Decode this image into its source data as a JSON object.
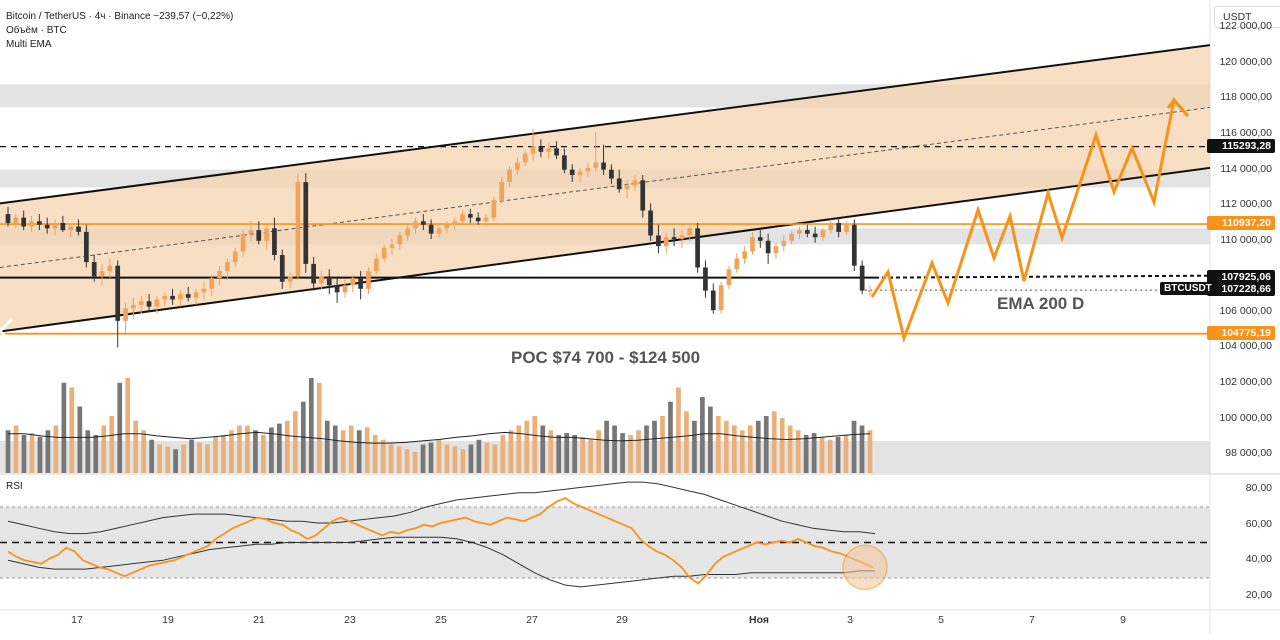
{
  "header": {
    "symbol_line": "Bitcoin / TetherUS · 4ч · Binance  −239,57 (−0,22%)",
    "volume_line": "Объём · BTC",
    "ema_line": "Multi EMA"
  },
  "price_axis": {
    "currency": "USDT",
    "ticks": [
      "122 000,00",
      "120 000,00",
      "118 000,00",
      "116 000,00",
      "114 000,00",
      "112 000,00",
      "110 000,00",
      "108 000,00",
      "106 000,00",
      "104 000,00",
      "102 000,00",
      "100 000,00",
      "98 000,00"
    ]
  },
  "rsi_axis": {
    "label": "RSI",
    "ticks": [
      "80,00",
      "60,00",
      "40,00",
      "20,00"
    ]
  },
  "time_axis": {
    "ticks": [
      "17",
      "19",
      "21",
      "23",
      "25",
      "27",
      "29",
      "Ноя",
      "3",
      "5",
      "7",
      "9"
    ]
  },
  "price_labels": [
    {
      "text": "115293,28",
      "color": "#111111"
    },
    {
      "text": "110937,20",
      "color": "#f7931a"
    },
    {
      "text": "107925,06",
      "color": "#111111"
    },
    {
      "text": "107228,66",
      "color": "#111111"
    },
    {
      "text": "104775,19",
      "color": "#f7931a"
    }
  ],
  "ticker_label": "BTCUSDT",
  "annotations": {
    "ema": "EMA 200 D",
    "poc": "POC $74 700 - $124 500"
  },
  "colors": {
    "up": "#f0a35a",
    "down": "#333333",
    "orange": "#f7931a",
    "channel_fill": "#f6d3ad",
    "zone_grey": "#d9d9d9",
    "rsi": "#f7931a"
  },
  "chart_data": {
    "type": "candlestick",
    "title": "Bitcoin / TetherUS · 4ч · Binance",
    "ylim": [
      97000,
      123200
    ],
    "levels": {
      "resistance_dashed": 115293.28,
      "orange_level": 110937.2,
      "ema200d": 107925.06,
      "last_price": 107228.66,
      "poc_support": 104775.19
    },
    "grey_zones": [
      [
        117500,
        118800
      ],
      [
        113000,
        114000
      ],
      [
        109800,
        110700
      ]
    ],
    "channel": {
      "upper": {
        "from": [
          0,
          112100
        ],
        "to": [
          1210,
          121000
        ]
      },
      "lower": {
        "from": [
          0,
          104900
        ],
        "to": [
          1210,
          114100
        ]
      },
      "mid": {
        "from": [
          0,
          108500
        ],
        "to": [
          1210,
          117500
        ]
      }
    },
    "candles": [
      [
        111500,
        111900,
        110800,
        111000
      ],
      [
        111000,
        111500,
        110700,
        111300
      ],
      [
        111300,
        111700,
        110600,
        110800
      ],
      [
        110800,
        111400,
        110500,
        111100
      ],
      [
        111100,
        111500,
        110600,
        110900
      ],
      [
        110900,
        111300,
        110400,
        110700
      ],
      [
        110700,
        111200,
        110300,
        111000
      ],
      [
        111000,
        111400,
        110500,
        110600
      ],
      [
        110600,
        111000,
        110200,
        110800
      ],
      [
        110800,
        111200,
        110300,
        110500
      ],
      [
        110500,
        110900,
        108500,
        108800
      ],
      [
        108800,
        109200,
        107700,
        108000
      ],
      [
        108000,
        108700,
        107500,
        108300
      ],
      [
        108300,
        109000,
        107900,
        108600
      ],
      [
        108600,
        108900,
        104000,
        105500
      ],
      [
        105500,
        106500,
        104800,
        106200
      ],
      [
        106200,
        106800,
        105600,
        106400
      ],
      [
        106400,
        106900,
        105900,
        106600
      ],
      [
        106600,
        107000,
        106000,
        106300
      ],
      [
        106300,
        106900,
        105900,
        106700
      ],
      [
        106700,
        107100,
        106300,
        106900
      ],
      [
        106900,
        107300,
        106400,
        106700
      ],
      [
        106700,
        107200,
        106300,
        107000
      ],
      [
        107000,
        107400,
        106600,
        106800
      ],
      [
        106800,
        107300,
        106400,
        107100
      ],
      [
        107100,
        107700,
        106700,
        107300
      ],
      [
        107300,
        108100,
        106900,
        107900
      ],
      [
        107900,
        108600,
        107500,
        108300
      ],
      [
        108300,
        109000,
        107800,
        108800
      ],
      [
        108800,
        109600,
        108500,
        109400
      ],
      [
        109400,
        110600,
        109100,
        110400
      ],
      [
        110400,
        111100,
        110000,
        110600
      ],
      [
        110600,
        111100,
        109800,
        110000
      ],
      [
        110000,
        110900,
        109500,
        110700
      ],
      [
        110700,
        111300,
        108900,
        109200
      ],
      [
        109200,
        109500,
        107300,
        107700
      ],
      [
        107700,
        108200,
        107300,
        108000
      ],
      [
        108000,
        113800,
        107800,
        113300
      ],
      [
        113300,
        113800,
        108200,
        108700
      ],
      [
        108700,
        109100,
        107200,
        107600
      ],
      [
        107600,
        108300,
        107300,
        108000
      ],
      [
        108000,
        108400,
        107000,
        107500
      ],
      [
        107500,
        108000,
        106500,
        107100
      ],
      [
        107100,
        107800,
        106800,
        107500
      ],
      [
        107500,
        108100,
        107100,
        107900
      ],
      [
        107900,
        108300,
        106700,
        107300
      ],
      [
        107300,
        108500,
        107000,
        108300
      ],
      [
        108300,
        109300,
        108100,
        109000
      ],
      [
        109000,
        109800,
        108800,
        109600
      ],
      [
        109600,
        110100,
        109200,
        109800
      ],
      [
        109800,
        110500,
        109500,
        110300
      ],
      [
        110300,
        110900,
        110000,
        110700
      ],
      [
        110700,
        111300,
        110400,
        111100
      ],
      [
        111100,
        111500,
        110600,
        110900
      ],
      [
        110900,
        111200,
        110100,
        110400
      ],
      [
        110400,
        110900,
        110200,
        110700
      ],
      [
        110700,
        111100,
        110400,
        110900
      ],
      [
        110900,
        111300,
        110600,
        111100
      ],
      [
        111100,
        111700,
        110900,
        111500
      ],
      [
        111500,
        111800,
        111000,
        111300
      ],
      [
        111300,
        111600,
        110900,
        111100
      ],
      [
        111100,
        111500,
        110800,
        111300
      ],
      [
        111300,
        112500,
        111100,
        112300
      ],
      [
        112300,
        113600,
        112100,
        113300
      ],
      [
        113300,
        114200,
        113000,
        114000
      ],
      [
        114000,
        114700,
        113700,
        114400
      ],
      [
        114400,
        115100,
        114200,
        114900
      ],
      [
        114900,
        116300,
        114500,
        115300
      ],
      [
        115300,
        115700,
        114700,
        115000
      ],
      [
        115000,
        115500,
        114600,
        115200
      ],
      [
        115200,
        115600,
        114600,
        114800
      ],
      [
        114800,
        115200,
        113800,
        114000
      ],
      [
        114000,
        114300,
        113300,
        113700
      ],
      [
        113700,
        114100,
        113300,
        113900
      ],
      [
        113900,
        114400,
        113600,
        114100
      ],
      [
        114100,
        116100,
        113900,
        114400
      ],
      [
        114400,
        115400,
        113700,
        114000
      ],
      [
        114000,
        114300,
        113200,
        113500
      ],
      [
        113500,
        114000,
        112700,
        112900
      ],
      [
        112900,
        113400,
        112400,
        113100
      ],
      [
        113100,
        113700,
        112800,
        113400
      ],
      [
        113400,
        113700,
        111300,
        111700
      ],
      [
        111700,
        112100,
        110000,
        110300
      ],
      [
        110300,
        110900,
        109300,
        109700
      ],
      [
        109700,
        110400,
        109300,
        110200
      ],
      [
        110200,
        110700,
        109700,
        110100
      ],
      [
        110100,
        110600,
        109600,
        110300
      ],
      [
        110300,
        111000,
        110000,
        110700
      ],
      [
        110700,
        111000,
        108200,
        108500
      ],
      [
        108500,
        108900,
        106800,
        107200
      ],
      [
        107200,
        107600,
        105900,
        106100
      ],
      [
        106100,
        107700,
        105900,
        107500
      ],
      [
        107500,
        108600,
        107300,
        108400
      ],
      [
        108400,
        109300,
        108200,
        109000
      ],
      [
        109000,
        109700,
        108700,
        109400
      ],
      [
        109400,
        110500,
        109200,
        110200
      ],
      [
        110200,
        110600,
        109600,
        110000
      ],
      [
        110000,
        110400,
        108700,
        109300
      ],
      [
        109300,
        109900,
        109000,
        109700
      ],
      [
        109700,
        110300,
        109400,
        110000
      ],
      [
        110000,
        110600,
        109800,
        110400
      ],
      [
        110400,
        110800,
        110100,
        110600
      ],
      [
        110600,
        110900,
        110200,
        110400
      ],
      [
        110400,
        110800,
        109900,
        110200
      ],
      [
        110200,
        110700,
        110000,
        110600
      ],
      [
        110600,
        111200,
        110400,
        111000
      ],
      [
        111000,
        111300,
        110200,
        110500
      ],
      [
        110500,
        111100,
        110300,
        110900
      ],
      [
        110900,
        111200,
        108300,
        108600
      ],
      [
        108600,
        108900,
        107000,
        107200
      ],
      [
        107200,
        107500,
        106900,
        107228.66
      ]
    ],
    "volume": [
      0.45,
      0.5,
      0.4,
      0.42,
      0.38,
      0.45,
      0.5,
      0.95,
      0.9,
      0.7,
      0.45,
      0.4,
      0.5,
      0.6,
      0.95,
      1.0,
      0.55,
      0.45,
      0.35,
      0.3,
      0.28,
      0.25,
      0.3,
      0.35,
      0.32,
      0.3,
      0.38,
      0.4,
      0.45,
      0.5,
      0.5,
      0.45,
      0.4,
      0.48,
      0.52,
      0.55,
      0.65,
      0.75,
      1.0,
      0.95,
      0.55,
      0.5,
      0.45,
      0.5,
      0.45,
      0.48,
      0.4,
      0.35,
      0.3,
      0.28,
      0.25,
      0.22,
      0.3,
      0.32,
      0.35,
      0.3,
      0.28,
      0.25,
      0.3,
      0.35,
      0.32,
      0.3,
      0.4,
      0.45,
      0.5,
      0.55,
      0.6,
      0.5,
      0.45,
      0.4,
      0.42,
      0.4,
      0.38,
      0.35,
      0.45,
      0.55,
      0.5,
      0.42,
      0.4,
      0.45,
      0.5,
      0.55,
      0.6,
      0.75,
      0.9,
      0.65,
      0.55,
      0.8,
      0.7,
      0.6,
      0.55,
      0.5,
      0.45,
      0.5,
      0.55,
      0.6,
      0.65,
      0.58,
      0.5,
      0.45,
      0.4,
      0.42,
      0.38,
      0.35,
      0.38,
      0.4,
      0.55,
      0.5,
      0.45
    ],
    "volume_ma": [
      0.55,
      0.55,
      0.52,
      0.5,
      0.5,
      0.5,
      0.52,
      0.55,
      0.55,
      0.52,
      0.5,
      0.48,
      0.5,
      0.52,
      0.55,
      0.57,
      0.55,
      0.52,
      0.5,
      0.48,
      0.45,
      0.43,
      0.42,
      0.42,
      0.43,
      0.45,
      0.47,
      0.5,
      0.52,
      0.55,
      0.57,
      0.55,
      0.52,
      0.5,
      0.5,
      0.48,
      0.46,
      0.45,
      0.46,
      0.48,
      0.5,
      0.52,
      0.55,
      0.55,
      0.52,
      0.5,
      0.48,
      0.47,
      0.48,
      0.5,
      0.52,
      0.54,
      0.55
    ],
    "rsi": [
      45,
      42,
      40,
      39,
      38,
      41,
      43,
      47,
      45,
      40,
      38,
      36,
      35,
      33,
      31,
      33,
      35,
      37,
      38,
      39,
      40,
      42,
      44,
      46,
      48,
      52,
      55,
      58,
      60,
      62,
      64,
      63,
      61,
      60,
      57,
      55,
      52,
      54,
      58,
      62,
      64,
      62,
      60,
      58,
      56,
      54,
      56,
      55,
      57,
      58,
      60,
      59,
      61,
      62,
      63,
      64,
      62,
      61,
      60,
      62,
      64,
      63,
      62,
      64,
      66,
      70,
      73,
      75,
      72,
      70,
      68,
      66,
      64,
      62,
      60,
      58,
      52,
      48,
      45,
      43,
      40,
      36,
      30,
      27,
      32,
      38,
      42,
      44,
      46,
      48,
      50,
      49,
      50,
      51,
      50,
      52,
      50,
      48,
      47,
      45,
      44,
      42,
      40,
      38,
      36
    ],
    "rsi_band_upper": [
      62,
      60,
      58,
      56,
      55,
      55,
      56,
      58,
      60,
      62,
      64,
      65,
      66,
      66,
      66,
      65,
      64,
      63,
      62,
      62,
      61,
      61,
      62,
      63,
      64,
      65,
      67,
      70,
      72,
      74,
      75,
      76,
      77,
      78,
      78,
      79,
      80,
      81,
      82,
      83,
      84,
      84,
      83,
      81,
      79,
      77,
      74,
      71,
      68,
      65,
      62,
      60,
      58,
      57,
      56,
      56,
      55
    ],
    "rsi_band_lower": [
      40,
      38,
      36,
      35,
      35,
      35,
      36,
      37,
      38,
      39,
      40,
      42,
      44,
      46,
      47,
      48,
      49,
      49,
      50,
      50,
      50,
      50,
      50,
      51,
      52,
      53,
      53,
      53,
      53,
      52,
      50,
      47,
      43,
      38,
      33,
      29,
      26,
      25,
      26,
      27,
      28,
      29,
      30,
      31,
      31,
      32,
      32,
      32,
      33,
      33,
      33,
      33,
      33,
      33,
      33,
      34,
      34
    ],
    "rsi_levels": {
      "upper": 70,
      "middle": 50,
      "lower": 30
    },
    "projection": [
      [
        872,
        297
      ],
      [
        888,
        272
      ],
      [
        904,
        338
      ],
      [
        932,
        263
      ],
      [
        948,
        303
      ],
      [
        978,
        210
      ],
      [
        994,
        258
      ],
      [
        1010,
        216
      ],
      [
        1024,
        281
      ],
      [
        1048,
        193
      ],
      [
        1062,
        238
      ],
      [
        1096,
        135
      ],
      [
        1114,
        192
      ],
      [
        1132,
        148
      ],
      [
        1154,
        202
      ],
      [
        1174,
        100
      ],
      [
        1188,
        116
      ]
    ]
  }
}
